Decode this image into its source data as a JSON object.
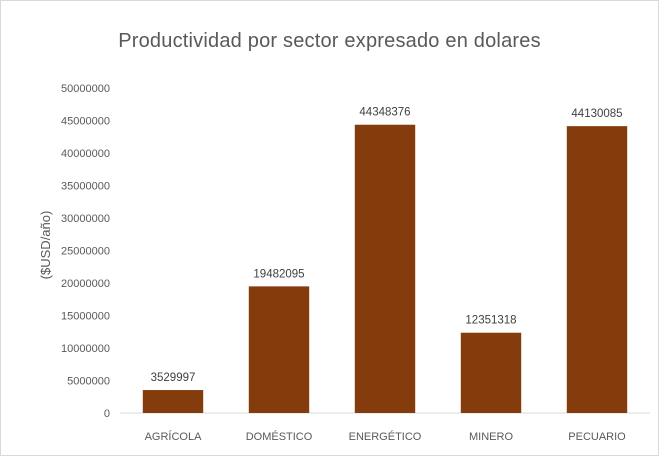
{
  "chart_data": {
    "type": "bar",
    "title": "Productividad por sector expresado en dolares",
    "xlabel": "",
    "ylabel": "($USD/año)",
    "categories": [
      "AGRÍCOLA",
      "DOMÉSTICO",
      "ENERGÉTICO",
      "MINERO",
      "PECUARIO"
    ],
    "values": [
      3529997,
      19482095,
      44348376,
      12351318,
      44130085
    ],
    "data_labels": [
      "3529997",
      "19482095",
      "44348376",
      "12351318",
      "44130085"
    ],
    "ylim": [
      0,
      50000000
    ],
    "yticks": [
      0,
      5000000,
      10000000,
      15000000,
      20000000,
      25000000,
      30000000,
      35000000,
      40000000,
      45000000,
      50000000
    ],
    "ytick_labels": [
      "0",
      "5000000",
      "10000000",
      "15000000",
      "20000000",
      "25000000",
      "30000000",
      "35000000",
      "40000000",
      "45000000",
      "50000000"
    ],
    "grid": false,
    "legend": "none",
    "colors": {
      "bar": "#843c0c",
      "text": "#595959",
      "axis": "#d9d9d9"
    }
  }
}
